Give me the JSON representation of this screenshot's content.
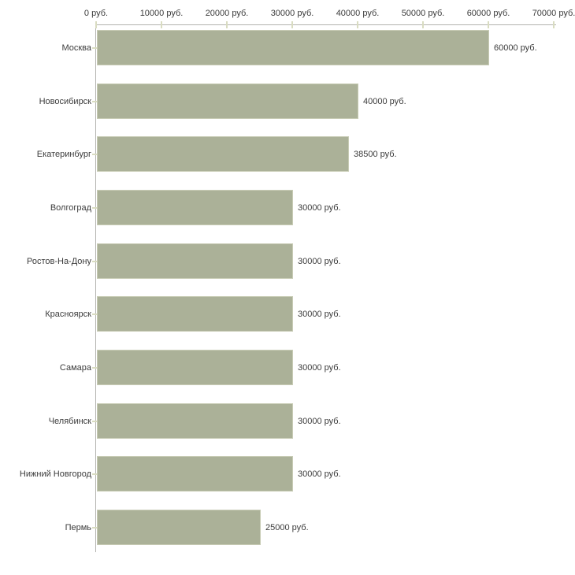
{
  "chart_data": {
    "type": "bar",
    "orientation": "horizontal",
    "title": "",
    "xlabel": "",
    "ylabel": "",
    "unit": "руб.",
    "categories": [
      "Москва",
      "Новосибирск",
      "Екатеринбург",
      "Волгоград",
      "Ростов-На-Дону",
      "Красноярск",
      "Самара",
      "Челябинск",
      "Нижний Новгород",
      "Пермь"
    ],
    "values": [
      60000,
      40000,
      38500,
      30000,
      30000,
      30000,
      30000,
      30000,
      30000,
      25000
    ],
    "value_labels": [
      "60000 руб.",
      "40000 руб.",
      "38500 руб.",
      "30000 руб.",
      "30000 руб.",
      "30000 руб.",
      "30000 руб.",
      "30000 руб.",
      "30000 руб.",
      "25000 руб."
    ],
    "x_tick_labels": [
      "0 руб.",
      "10000 руб.",
      "20000 руб.",
      "30000 руб.",
      "40000 руб.",
      "50000 руб.",
      "60000 руб.",
      "70000 руб."
    ],
    "x_tick_values": [
      0,
      10000,
      20000,
      30000,
      40000,
      50000,
      60000,
      70000
    ],
    "xlim": [
      0,
      70000
    ],
    "grid": false,
    "legend": false,
    "colors": {
      "bar_fill": "#abb198",
      "bar_border": "#c8ccb5",
      "axis_line": "#b3b3ae",
      "tick_mark": "#d9dcc1",
      "text": "#3b3b3b",
      "background": "#ffffff"
    }
  }
}
